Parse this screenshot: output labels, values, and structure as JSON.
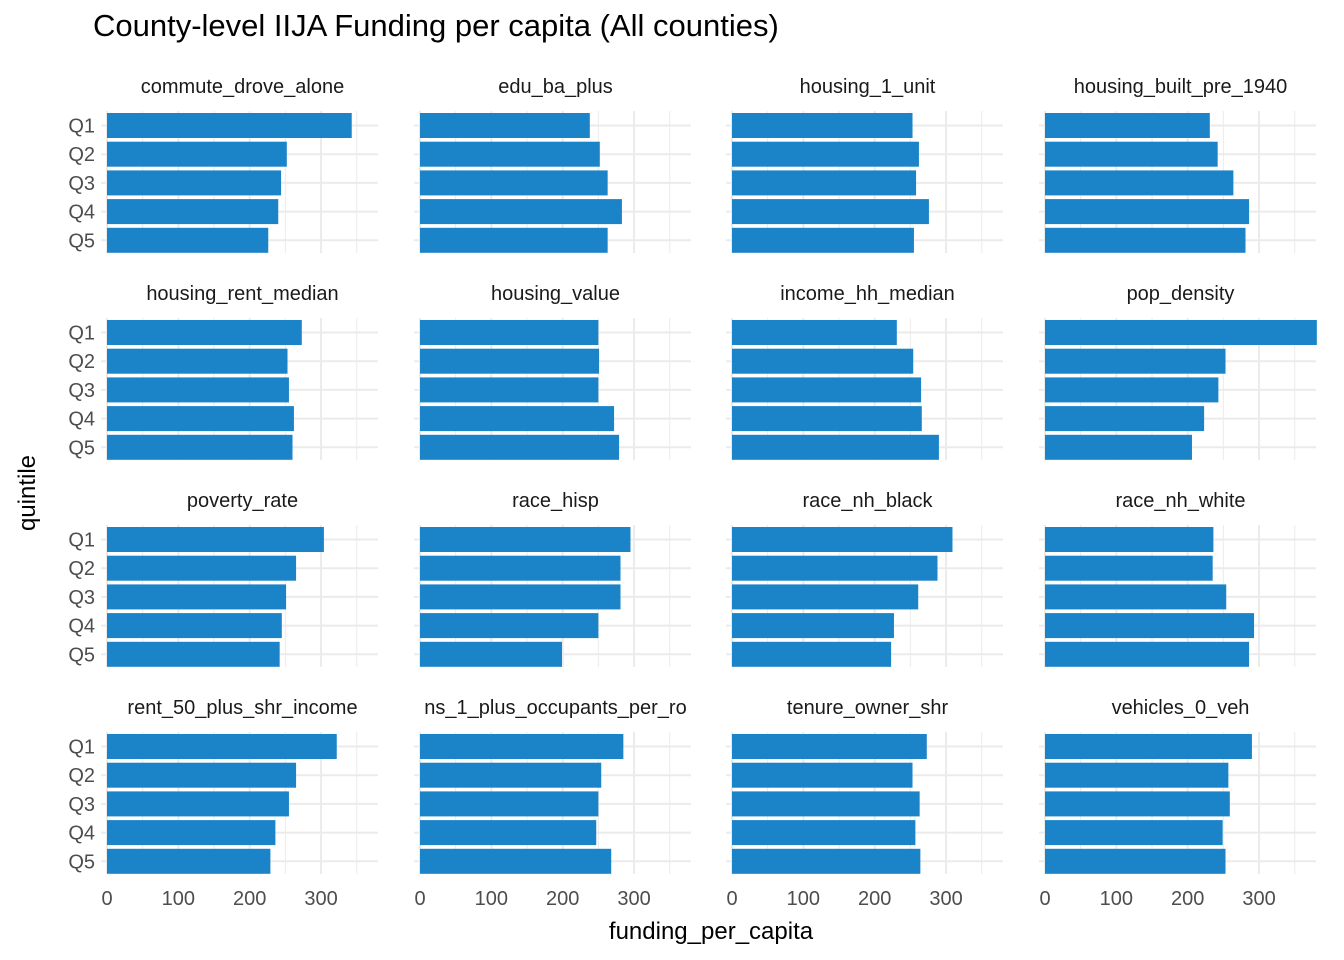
{
  "chart_data": {
    "type": "bar",
    "orientation": "horizontal",
    "title": "County-level IIJA Funding per capita (All counties)",
    "xlabel": "funding_per_capita",
    "ylabel": "quintile",
    "categories": [
      "Q1",
      "Q2",
      "Q3",
      "Q4",
      "Q5"
    ],
    "xlim": [
      0,
      385
    ],
    "x_ticks": [
      0,
      100,
      200,
      300
    ],
    "grid": true,
    "bar_color": "#1b84c8",
    "facets": [
      {
        "name": "commute_drove_alone",
        "values": [
          343,
          252,
          244,
          240,
          226
        ]
      },
      {
        "name": "edu_ba_plus",
        "values": [
          238,
          252,
          263,
          283,
          263
        ]
      },
      {
        "name": "housing_1_unit",
        "values": [
          253,
          262,
          258,
          276,
          255
        ]
      },
      {
        "name": "housing_built_pre_1940",
        "values": [
          231,
          242,
          264,
          286,
          281
        ]
      },
      {
        "name": "housing_rent_median",
        "values": [
          273,
          253,
          255,
          262,
          260
        ]
      },
      {
        "name": "housing_value",
        "values": [
          250,
          251,
          250,
          272,
          279
        ]
      },
      {
        "name": "income_hh_median",
        "values": [
          231,
          254,
          265,
          266,
          290
        ]
      },
      {
        "name": "pop_density",
        "values": [
          381,
          253,
          243,
          223,
          206
        ]
      },
      {
        "name": "poverty_rate",
        "values": [
          304,
          265,
          251,
          245,
          242
        ]
      },
      {
        "name": "race_hisp",
        "values": [
          295,
          281,
          281,
          250,
          199
        ]
      },
      {
        "name": "race_nh_black",
        "values": [
          309,
          288,
          261,
          227,
          223
        ]
      },
      {
        "name": "race_nh_white",
        "values": [
          236,
          235,
          254,
          293,
          286
        ]
      },
      {
        "name": "rent_50_plus_shr_income",
        "values": [
          322,
          265,
          255,
          236,
          229
        ]
      },
      {
        "name": "ns_1_plus_occupants_per_ro",
        "values": [
          285,
          254,
          250,
          247,
          268
        ]
      },
      {
        "name": "tenure_owner_shr",
        "values": [
          273,
          253,
          263,
          257,
          264
        ]
      },
      {
        "name": "vehicles_0_veh",
        "values": [
          290,
          257,
          259,
          249,
          253
        ]
      }
    ]
  }
}
